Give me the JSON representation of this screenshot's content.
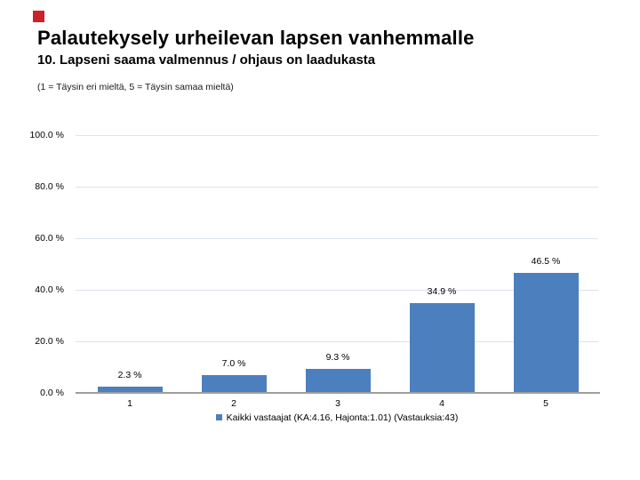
{
  "header": {
    "title": "Palautekysely urheilevan lapsen vanhemmalle",
    "subtitle": "10. Lapseni saama valmennus / ohjaus on laadukasta",
    "note": "(1 = Täysin eri mieltä, 5 = Täysin samaa mieltä)"
  },
  "colors": {
    "bar": "#4c7fbd",
    "gridline": "#dce3ed",
    "axis": "#9e9e9e",
    "accent": "#cc2128",
    "text": "#000000"
  },
  "chart_data": {
    "type": "bar",
    "categories": [
      "1",
      "2",
      "3",
      "4",
      "5"
    ],
    "values": [
      2.3,
      7.0,
      9.3,
      34.9,
      46.5
    ],
    "value_labels": [
      "2.3 %",
      "7.0 %",
      "9.3 %",
      "34.9 %",
      "46.5 %"
    ],
    "y_ticks": [
      "100.0 %",
      "80.0 %",
      "60.0 %",
      "40.0 %",
      "20.0 %",
      "0.0 %"
    ],
    "ylim": [
      0,
      100
    ],
    "grid": true,
    "xlabel": "",
    "ylabel": "",
    "legend": {
      "position": "bottom",
      "label": "Kaikki vastaajat (KA:4.16, Hajonta:1.01) (Vastauksia:43)"
    }
  }
}
